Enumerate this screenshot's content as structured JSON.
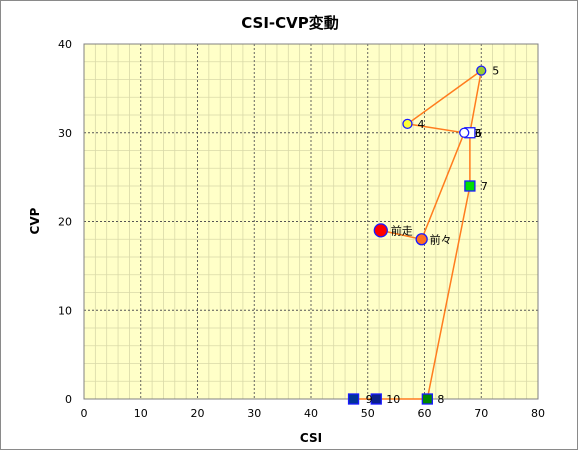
{
  "chart_data": {
    "type": "scatter",
    "title": "CSI-CVP変動",
    "xlabel": "CSI",
    "ylabel": "CVP",
    "xlim": [
      0,
      80
    ],
    "ylim": [
      0,
      40
    ],
    "xticks": [
      0,
      10,
      20,
      30,
      40,
      50,
      60,
      70,
      80
    ],
    "yticks": [
      0,
      10,
      20,
      30,
      40
    ],
    "grid": true,
    "plot_background": "#ffffc8",
    "line_color": "#ff7c1e",
    "points": [
      {
        "label": "前走",
        "x": 52.3,
        "y": 19.0,
        "shape": "circle",
        "size": "large",
        "fill": "#ff0000",
        "stroke": "#1a1aff"
      },
      {
        "label": "前々",
        "x": 59.5,
        "y": 18.0,
        "shape": "circle",
        "size": "medium",
        "fill": "#ff7020",
        "stroke": "#1a1aff"
      },
      {
        "label": "3",
        "x": 67.0,
        "y": 30.0,
        "shape": "circle",
        "size": "small",
        "fill": "#ffffff",
        "stroke": "#1a1aff"
      },
      {
        "label": "4",
        "x": 57.0,
        "y": 31.0,
        "shape": "circle",
        "size": "small",
        "fill": "#ffff33",
        "stroke": "#1a1aff"
      },
      {
        "label": "5",
        "x": 70.0,
        "y": 37.0,
        "shape": "circle",
        "size": "small",
        "fill": "#99cc33",
        "stroke": "#1a1aff"
      },
      {
        "label": "6",
        "x": 68.0,
        "y": 30.0,
        "shape": "square",
        "size": "small",
        "fill": "#ffffff",
        "stroke": "#1a1aff"
      },
      {
        "label": "7",
        "x": 68.0,
        "y": 24.0,
        "shape": "square",
        "size": "small",
        "fill": "#00dd00",
        "stroke": "#1a1aff"
      },
      {
        "label": "8",
        "x": 60.5,
        "y": 0.0,
        "shape": "square",
        "size": "small",
        "fill": "#008800",
        "stroke": "#1a1aff"
      },
      {
        "label": "9",
        "x": 47.5,
        "y": 0.0,
        "shape": "square",
        "size": "small",
        "fill": "#003399",
        "stroke": "#1a1aff"
      },
      {
        "label": "10",
        "x": 51.5,
        "y": 0.0,
        "shape": "square",
        "size": "small",
        "fill": "#0a1f8c",
        "stroke": "#1a1aff"
      }
    ]
  }
}
